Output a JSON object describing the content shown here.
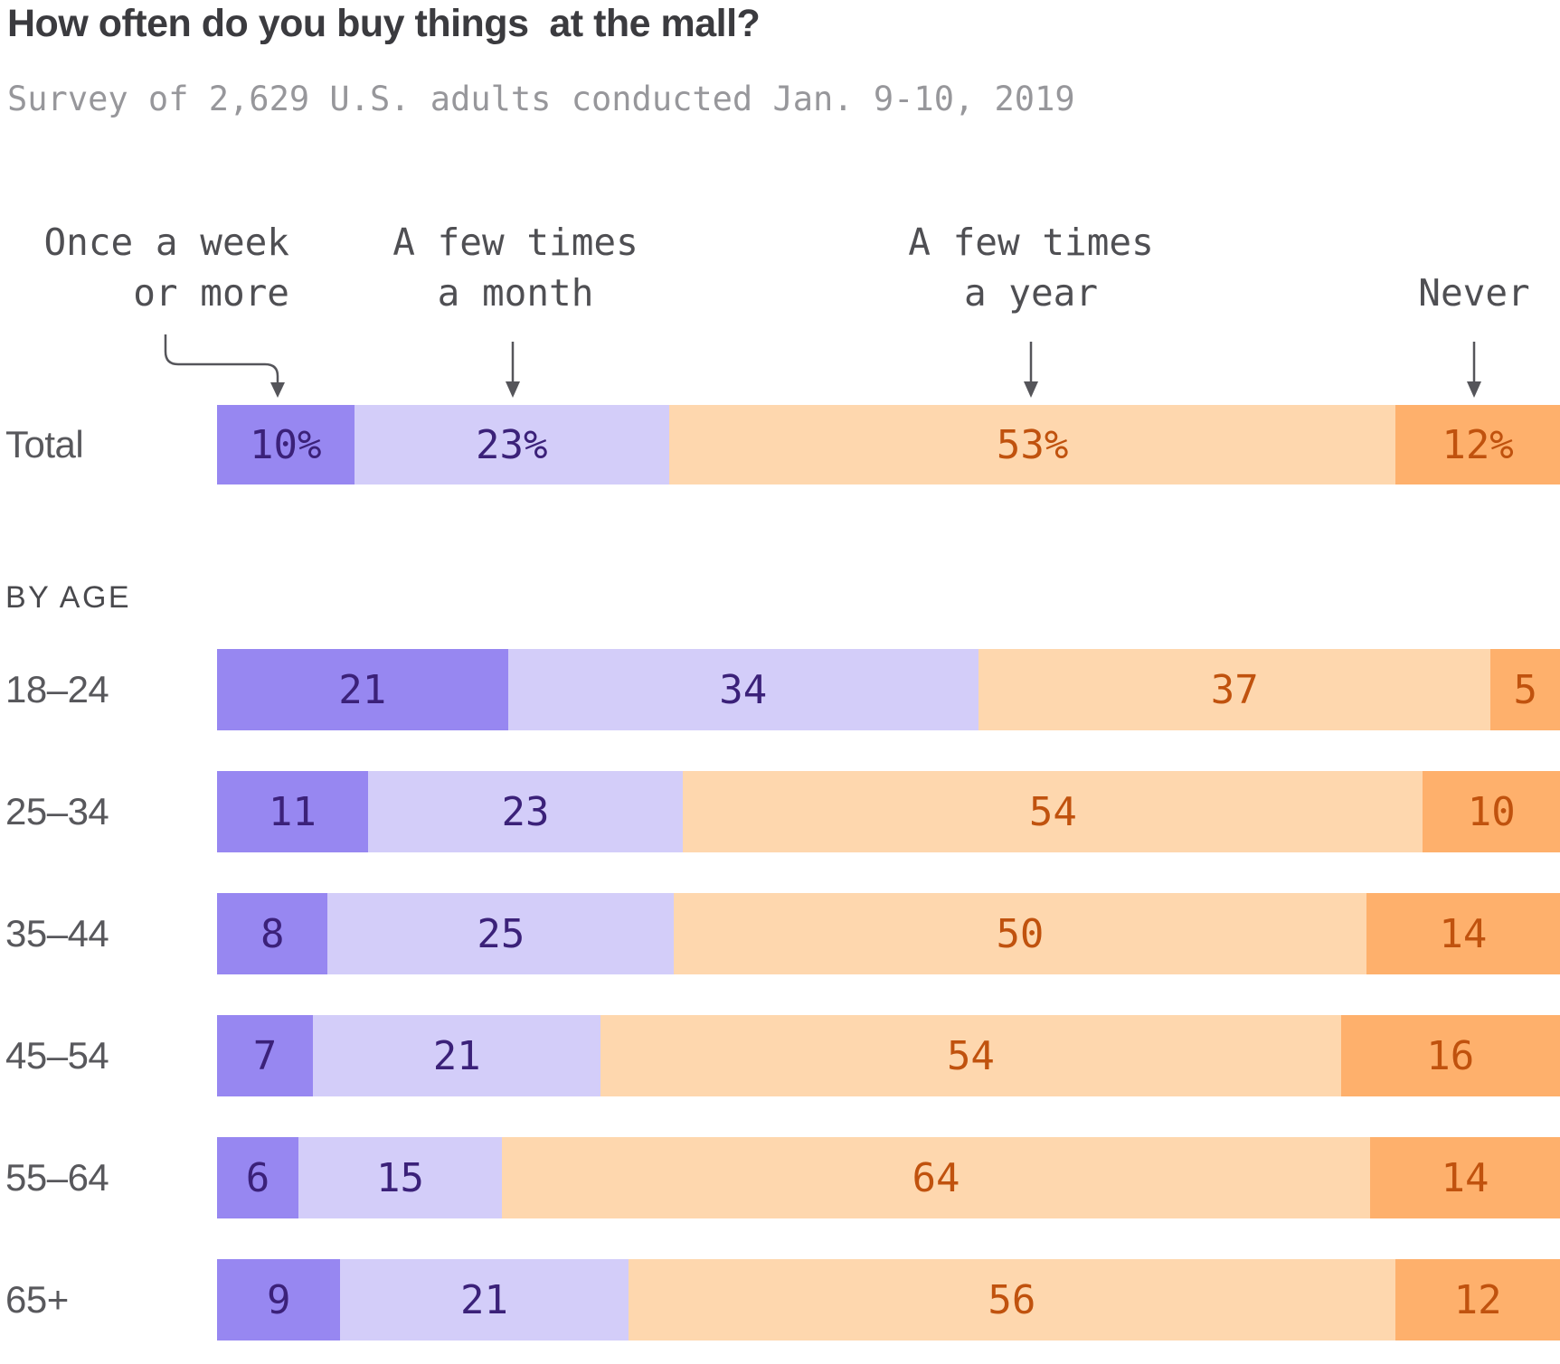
{
  "title": "How often do you buy things  at the mall?",
  "subtitle": "Survey of 2,629 U.S. adults conducted Jan. 9-10, 2019",
  "section_label": "BY AGE",
  "legend": [
    {
      "line1": "Once a week",
      "line2": "or more"
    },
    {
      "line1": "A few times",
      "line2": "a month"
    },
    {
      "line1": "A few times",
      "line2": "a year"
    },
    {
      "line1": "Never",
      "line2": ""
    }
  ],
  "palette": {
    "segment_colors": [
      "#9787f1",
      "#d3cdf9",
      "#fed7ae",
      "#feb06c"
    ],
    "value_text_purple": "#3b2179",
    "value_text_orange": "#c0520e",
    "title_color": "#3b3b3f",
    "subtitle_color": "#97979b",
    "label_color": "#58585c",
    "arrow_color": "#55555a"
  },
  "chart_data": {
    "type": "bar",
    "orientation": "horizontal",
    "stacked": true,
    "title": "How often do you buy things at the mall?",
    "subtitle": "Survey of 2,629 U.S. adults conducted Jan. 9-10, 2019",
    "categories": [
      "Once a week or more",
      "A few times a month",
      "A few times a year",
      "Never"
    ],
    "category_slugs": [
      "once-a-week-or-more",
      "a-few-times-a-month",
      "a-few-times-a-year",
      "never"
    ],
    "unit": "percent",
    "legend_position": "top-with-arrows",
    "rows": [
      {
        "label": "Total",
        "values": [
          10,
          23,
          53,
          12
        ],
        "display": [
          "10%",
          "23%",
          "53%",
          "12%"
        ]
      },
      {
        "label": "18–24",
        "values": [
          21,
          34,
          37,
          5
        ],
        "display": [
          "21",
          "34",
          "37",
          "5"
        ]
      },
      {
        "label": "25–34",
        "values": [
          11,
          23,
          54,
          10
        ],
        "display": [
          "11",
          "23",
          "54",
          "10"
        ]
      },
      {
        "label": "35–44",
        "values": [
          8,
          25,
          50,
          14
        ],
        "display": [
          "8",
          "25",
          "50",
          "14"
        ]
      },
      {
        "label": "45–54",
        "values": [
          7,
          21,
          54,
          16
        ],
        "display": [
          "7",
          "21",
          "54",
          "16"
        ]
      },
      {
        "label": "55–64",
        "values": [
          6,
          15,
          64,
          14
        ],
        "display": [
          "6",
          "15",
          "64",
          "14"
        ]
      },
      {
        "label": "65+",
        "values": [
          9,
          21,
          56,
          12
        ],
        "display": [
          "9",
          "21",
          "56",
          "12"
        ]
      }
    ]
  }
}
